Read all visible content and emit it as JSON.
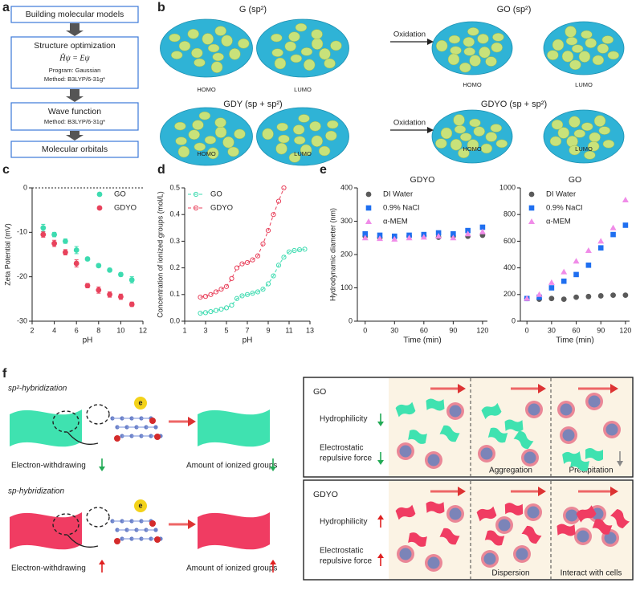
{
  "panel_labels": [
    "a",
    "b",
    "c",
    "d",
    "e",
    "f"
  ],
  "flowchart": {
    "steps": [
      {
        "title": "Building molecular models"
      },
      {
        "title": "Structure optimization",
        "equation": "Ĥψ = Eψ",
        "lines": [
          "Program: Gaussian",
          "Method: B3LYP/6-31g*"
        ]
      },
      {
        "title": "Wave function",
        "lines": [
          "Method: B3LYP/6-31g*"
        ]
      },
      {
        "title": "Molecular orbitals"
      }
    ]
  },
  "orbitals": {
    "rows": [
      {
        "left_title": "G (sp²)",
        "right_title": "GO (sp²)",
        "arrow": "Oxidation",
        "labels": [
          "HOMO",
          "LUMO",
          "HOMO",
          "LUMO"
        ]
      },
      {
        "left_title": "GDY (sp + sp²)",
        "right_title": "GDYO (sp + sp²)",
        "arrow": "Oxidation",
        "labels": [
          "HOMO",
          "LUMO",
          "HOMO",
          "LUMO"
        ]
      }
    ]
  },
  "chart_data": [
    {
      "type": "scatter",
      "xlabel": "pH",
      "ylabel": "Zeta Potential (mV)",
      "x": [
        3,
        4,
        5,
        6,
        7,
        8,
        9,
        10,
        11
      ],
      "series": [
        {
          "name": "GO",
          "color": "#3ddbb0",
          "marker": "circle",
          "values": [
            -9,
            -10.5,
            -12,
            -14,
            -16,
            -17.5,
            -18.5,
            -19.5,
            -20.7
          ],
          "errors": [
            0.8,
            0.5,
            0.5,
            0.8,
            0.4,
            0.4,
            0.4,
            0.4,
            0.7
          ]
        },
        {
          "name": "GDYO",
          "color": "#e8425c",
          "marker": "circle",
          "values": [
            -10.5,
            -12.5,
            -14.5,
            -17,
            -22,
            -23,
            -24,
            -24.5,
            -26.2
          ],
          "errors": [
            0.6,
            0.7,
            0.6,
            0.8,
            0.5,
            0.7,
            0.6,
            0.6,
            0.5
          ]
        }
      ],
      "xlim": [
        2,
        12
      ],
      "xticks": [
        2,
        4,
        6,
        8,
        10,
        12
      ],
      "ylim": [
        -30,
        0
      ],
      "yticks": [
        -30,
        -20,
        -10,
        0
      ],
      "hline": 0,
      "legend": "upper right"
    },
    {
      "type": "line",
      "xlabel": "pH",
      "ylabel": "Concentration of ionized groups (mol/L)",
      "x": [
        2.5,
        3,
        3.5,
        4,
        4.5,
        5,
        5.5,
        6,
        6.5,
        7,
        7.5,
        8,
        8.5,
        9,
        9.5,
        10,
        10.5,
        11,
        11.5,
        12,
        12.5
      ],
      "series": [
        {
          "name": "GO",
          "color": "#3ddbb0",
          "marker": "circle",
          "values": [
            0.03,
            0.032,
            0.036,
            0.04,
            0.045,
            0.05,
            0.06,
            0.085,
            0.095,
            0.1,
            0.105,
            0.11,
            0.12,
            0.14,
            0.17,
            0.21,
            0.24,
            0.26,
            0.265,
            0.268,
            0.27
          ]
        },
        {
          "name": "GDYO",
          "color": "#e8425c",
          "marker": "circle",
          "values": [
            0.09,
            0.093,
            0.1,
            0.11,
            0.12,
            0.13,
            0.16,
            0.2,
            0.215,
            0.22,
            0.23,
            0.245,
            0.29,
            0.34,
            0.4,
            0.45,
            0.5,
            null,
            null,
            null,
            null
          ]
        }
      ],
      "xlim": [
        1,
        13
      ],
      "xticks": [
        1,
        3,
        5,
        7,
        9,
        11,
        13
      ],
      "ylim": [
        0,
        0.5
      ],
      "yticks": [
        {
          "value": 0,
          "label": "0.0"
        },
        0.1,
        0.2,
        0.3,
        0.4,
        0.5
      ],
      "line_style": "dashed",
      "open_markers": true,
      "legend": "upper left"
    },
    {
      "type": "scatter",
      "title": "GDYO",
      "xlabel": "Time (min)",
      "ylabel": "Hydrodynamic diameter (nm)",
      "x": [
        0,
        15,
        30,
        45,
        60,
        75,
        90,
        105,
        120
      ],
      "series": [
        {
          "name": "DI Water",
          "color": "#5a5a5a",
          "marker": "circle",
          "values": [
            255,
            250,
            252,
            255,
            256,
            252,
            255,
            255,
            258
          ]
        },
        {
          "name": "0.9% NaCl",
          "color": "#1f6ff0",
          "marker": "square",
          "values": [
            262,
            258,
            255,
            258,
            260,
            265,
            262,
            272,
            282
          ]
        },
        {
          "name": "α-MEM",
          "color": "#f08ce8",
          "marker": "triangle",
          "values": [
            250,
            248,
            246,
            250,
            252,
            255,
            250,
            262,
            268
          ]
        }
      ],
      "xlim": [
        -8,
        125
      ],
      "xticks": [
        0,
        30,
        60,
        90,
        120
      ],
      "ylim": [
        0,
        400
      ],
      "yticks": [
        0,
        100,
        200,
        300,
        400
      ],
      "legend": "upper left"
    },
    {
      "type": "scatter",
      "title": "GO",
      "xlabel": "Time (min)",
      "x": [
        0,
        15,
        30,
        45,
        60,
        75,
        90,
        105,
        120
      ],
      "series": [
        {
          "name": "DI Water",
          "color": "#5a5a5a",
          "marker": "circle",
          "values": [
            170,
            165,
            170,
            165,
            180,
            185,
            190,
            195,
            195
          ]
        },
        {
          "name": "0.9% NaCl",
          "color": "#1f6ff0",
          "marker": "square",
          "values": [
            170,
            180,
            250,
            300,
            350,
            420,
            550,
            650,
            720
          ]
        },
        {
          "name": "α-MEM",
          "color": "#f08ce8",
          "marker": "triangle",
          "values": [
            170,
            200,
            290,
            370,
            450,
            530,
            600,
            700,
            910
          ]
        }
      ],
      "xlim": [
        -8,
        125
      ],
      "xticks": [
        0,
        30,
        60,
        90,
        120
      ],
      "ylim": [
        0,
        1000
      ],
      "yticks": [
        0,
        200,
        400,
        600,
        800,
        1000
      ],
      "legend": "upper left"
    }
  ],
  "mechanism": {
    "rows": [
      {
        "hybridization": "sp²-hybridization",
        "electron": "e",
        "withdrawing": "Electron-withdrawing",
        "ionized": "Amount of ionized groups",
        "material": "GO",
        "properties": [
          "Hydrophilicity",
          "Electrostatic",
          "repulsive force"
        ],
        "stages": [
          "Aggregation",
          "Precipitation"
        ]
      },
      {
        "hybridization": "sp-hybridization",
        "electron": "e",
        "withdrawing": "Electron-withdrawing",
        "ionized": "Amount of ionized groups",
        "material": "GDYO",
        "properties": [
          "Hydrophilicity",
          "Electrostatic",
          "repulsive force"
        ],
        "stages": [
          "Dispersion",
          "Interact with cells"
        ]
      }
    ]
  }
}
